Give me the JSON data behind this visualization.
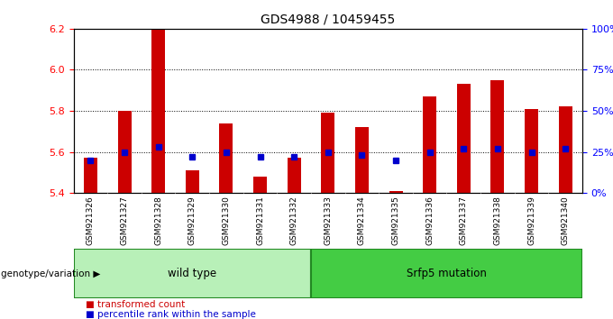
{
  "title": "GDS4988 / 10459455",
  "samples": [
    "GSM921326",
    "GSM921327",
    "GSM921328",
    "GSM921329",
    "GSM921330",
    "GSM921331",
    "GSM921332",
    "GSM921333",
    "GSM921334",
    "GSM921335",
    "GSM921336",
    "GSM921337",
    "GSM921338",
    "GSM921339",
    "GSM921340"
  ],
  "red_values": [
    5.57,
    5.8,
    6.2,
    5.51,
    5.74,
    5.48,
    5.57,
    5.79,
    5.72,
    5.41,
    5.87,
    5.93,
    5.95,
    5.81,
    5.82
  ],
  "blue_percentiles": [
    20,
    25,
    28,
    22,
    25,
    22,
    22,
    25,
    23,
    20,
    25,
    27,
    27,
    25,
    27
  ],
  "ylim_left": [
    5.4,
    6.2
  ],
  "ylim_right": [
    0,
    100
  ],
  "yticks_left": [
    5.4,
    5.6,
    5.8,
    6.0,
    6.2
  ],
  "yticks_right": [
    0,
    25,
    50,
    75,
    100
  ],
  "ytick_labels_right": [
    "0%",
    "25%",
    "50%",
    "75%",
    "100%"
  ],
  "wild_type_count": 7,
  "mutation_count": 8,
  "group1_label": "wild type",
  "group2_label": "Srfp5 mutation",
  "genotype_label": "genotype/variation",
  "bar_color": "#cc0000",
  "dot_color": "#0000cc",
  "legend_red": "transformed count",
  "legend_blue": "percentile rank within the sample",
  "group1_color": "#b8f0b8",
  "group2_color": "#44cc44",
  "title_fontsize": 10,
  "bar_width": 0.4
}
